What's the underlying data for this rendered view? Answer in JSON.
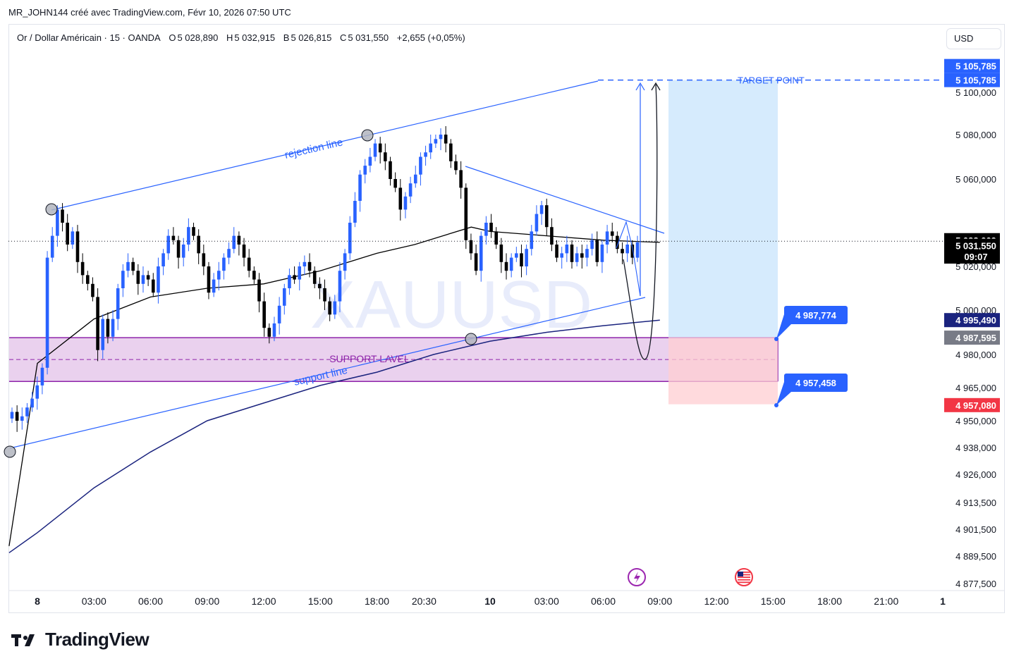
{
  "header": {
    "credit": "MR_JOHN144 créé avec TradingView.com, Févr 10, 2026 07:50 UTC"
  },
  "legend": {
    "symbol": "Or / Dollar Américain · 15 · OANDA",
    "open_label": "O",
    "open": "5 028,890",
    "high_label": "H",
    "high": "5 032,915",
    "low_label": "B",
    "low": "5 026,815",
    "close_label": "C",
    "close": "5 031,550",
    "change": "+2,655 (+0,05%)"
  },
  "currency": "USD",
  "watermark": "XAUUSD",
  "brand": {
    "name": "TradingView"
  },
  "annotations": {
    "rejection": "rejection line",
    "support_line": "support line",
    "support_level": "SUPPORT LAVEL",
    "target": "TARGET POINT",
    "target_callout": "4 987,774",
    "stop_callout": "4 957,458"
  },
  "price_badges": [
    {
      "text": "5 105,785",
      "price": 5105.785,
      "bg": "#2962ff",
      "fg": "#ffffff"
    },
    {
      "text": "5 032,009",
      "price": 5032.009,
      "bg": "#000000",
      "fg": "#ffffff"
    },
    {
      "text": "5 031,550",
      "price": 5029.5,
      "bg": "#000000",
      "fg": "#ffffff"
    },
    {
      "text": "09:07",
      "price": 5024.5,
      "bg": "#000000",
      "fg": "#ffffff"
    },
    {
      "text": "4 995,490",
      "price": 4995.49,
      "bg": "#1a237e",
      "fg": "#ffffff"
    },
    {
      "text": "4 987,595",
      "price": 4987.595,
      "bg": "#787b86",
      "fg": "#ffffff"
    },
    {
      "text": "4 957,080",
      "price": 4957.08,
      "bg": "#f23645",
      "fg": "#ffffff"
    }
  ],
  "colors": {
    "bull": "#2962ff",
    "bear": "#000000",
    "support_zone": "#e1bee7",
    "target_zone": "#bbdefb",
    "stop_zone": "#ffcdd2",
    "trend": "#2962ff",
    "ema_fast": "#000000",
    "ema_slow": "#1a237e"
  },
  "chart_data": {
    "type": "candlestick",
    "symbol": "XAUUSD",
    "timeframe": "15",
    "y_ticks": [
      {
        "price": 5100,
        "label": "5 100,000"
      },
      {
        "price": 5080,
        "label": "5 080,000"
      },
      {
        "price": 5060,
        "label": "5 060,000"
      },
      {
        "price": 5020,
        "label": "5 020,000"
      },
      {
        "price": 5000,
        "label": "5 000,000"
      },
      {
        "price": 4980,
        "label": "4 980,000"
      },
      {
        "price": 4965,
        "label": "4 965,000"
      },
      {
        "price": 4950,
        "label": "4 950,000"
      },
      {
        "price": 4938,
        "label": "4 938,000"
      },
      {
        "price": 4926,
        "label": "4 926,000"
      },
      {
        "price": 4913.5,
        "label": "4 913,500"
      },
      {
        "price": 4901.5,
        "label": "4 901,500"
      },
      {
        "price": 4889.5,
        "label": "4 889,500"
      },
      {
        "price": 4877.5,
        "label": "4 877,500"
      }
    ],
    "x_ticks": [
      {
        "t": 0,
        "label": "8",
        "bold": true
      },
      {
        "t": 3,
        "label": "03:00"
      },
      {
        "t": 6,
        "label": "06:00"
      },
      {
        "t": 9,
        "label": "09:00"
      },
      {
        "t": 12,
        "label": "12:00"
      },
      {
        "t": 15,
        "label": "15:00"
      },
      {
        "t": 18,
        "label": "18:00"
      },
      {
        "t": 20.5,
        "label": "20:30"
      },
      {
        "t": 24,
        "label": "10",
        "bold": true
      },
      {
        "t": 27,
        "label": "03:00"
      },
      {
        "t": 30,
        "label": "06:00"
      },
      {
        "t": 33,
        "label": "09:00"
      },
      {
        "t": 36,
        "label": "12:00"
      },
      {
        "t": 39,
        "label": "15:00"
      },
      {
        "t": 42,
        "label": "18:00"
      },
      {
        "t": 45,
        "label": "21:00"
      },
      {
        "t": 48,
        "label": "1",
        "bold": true
      }
    ],
    "closes": [
      4954,
      4950,
      4952,
      4956,
      4960,
      4966,
      4974,
      5024,
      5034,
      5046,
      5040,
      5030,
      5036,
      5022,
      5016,
      5012,
      5006,
      4982,
      4996,
      4988,
      4996,
      5010,
      5018,
      5022,
      5018,
      5012,
      5016,
      5014,
      5008,
      5020,
      5026,
      5034,
      5032,
      5024,
      5030,
      5038,
      5034,
      5026,
      5020,
      5008,
      5014,
      5018,
      5024,
      5028,
      5034,
      5030,
      5024,
      5018,
      5014,
      5004,
      4992,
      4988,
      4994,
      5002,
      5010,
      5016,
      5014,
      5020,
      5022,
      5018,
      5012,
      5010,
      5004,
      4998,
      5004,
      5018,
      5026,
      5040,
      5050,
      5062,
      5066,
      5070,
      5076,
      5072,
      5068,
      5060,
      5056,
      5046,
      5052,
      5058,
      5062,
      5070,
      5072,
      5076,
      5078,
      5080,
      5076,
      5068,
      5064,
      5056,
      5032,
      5026,
      5018,
      5034,
      5040,
      5036,
      5030,
      5022,
      5018,
      5024,
      5026,
      5020,
      5028,
      5036,
      5044,
      5048,
      5038,
      5030,
      5024,
      5026,
      5030,
      5022,
      5026,
      5024,
      5028,
      5032,
      5022,
      5030,
      5036,
      5034,
      5028,
      5026,
      5030,
      5024,
      5031
    ],
    "ema_fast": [
      [
        0,
        4976
      ],
      [
        3,
        4996
      ],
      [
        6,
        5006
      ],
      [
        9,
        5010
      ],
      [
        12,
        5012
      ],
      [
        15,
        5018
      ],
      [
        18,
        5026
      ],
      [
        20,
        5030
      ],
      [
        23,
        5038
      ],
      [
        24,
        5036
      ],
      [
        27,
        5034
      ],
      [
        30,
        5032
      ],
      [
        33,
        5031
      ]
    ],
    "ema_slow": [
      [
        0,
        4900
      ],
      [
        3,
        4920
      ],
      [
        6,
        4936
      ],
      [
        9,
        4950
      ],
      [
        12,
        4958
      ],
      [
        15,
        4966
      ],
      [
        18,
        4972
      ],
      [
        21,
        4980
      ],
      [
        24,
        4986
      ],
      [
        27,
        4990
      ],
      [
        30,
        4993
      ],
      [
        33,
        4995.5
      ]
    ]
  }
}
